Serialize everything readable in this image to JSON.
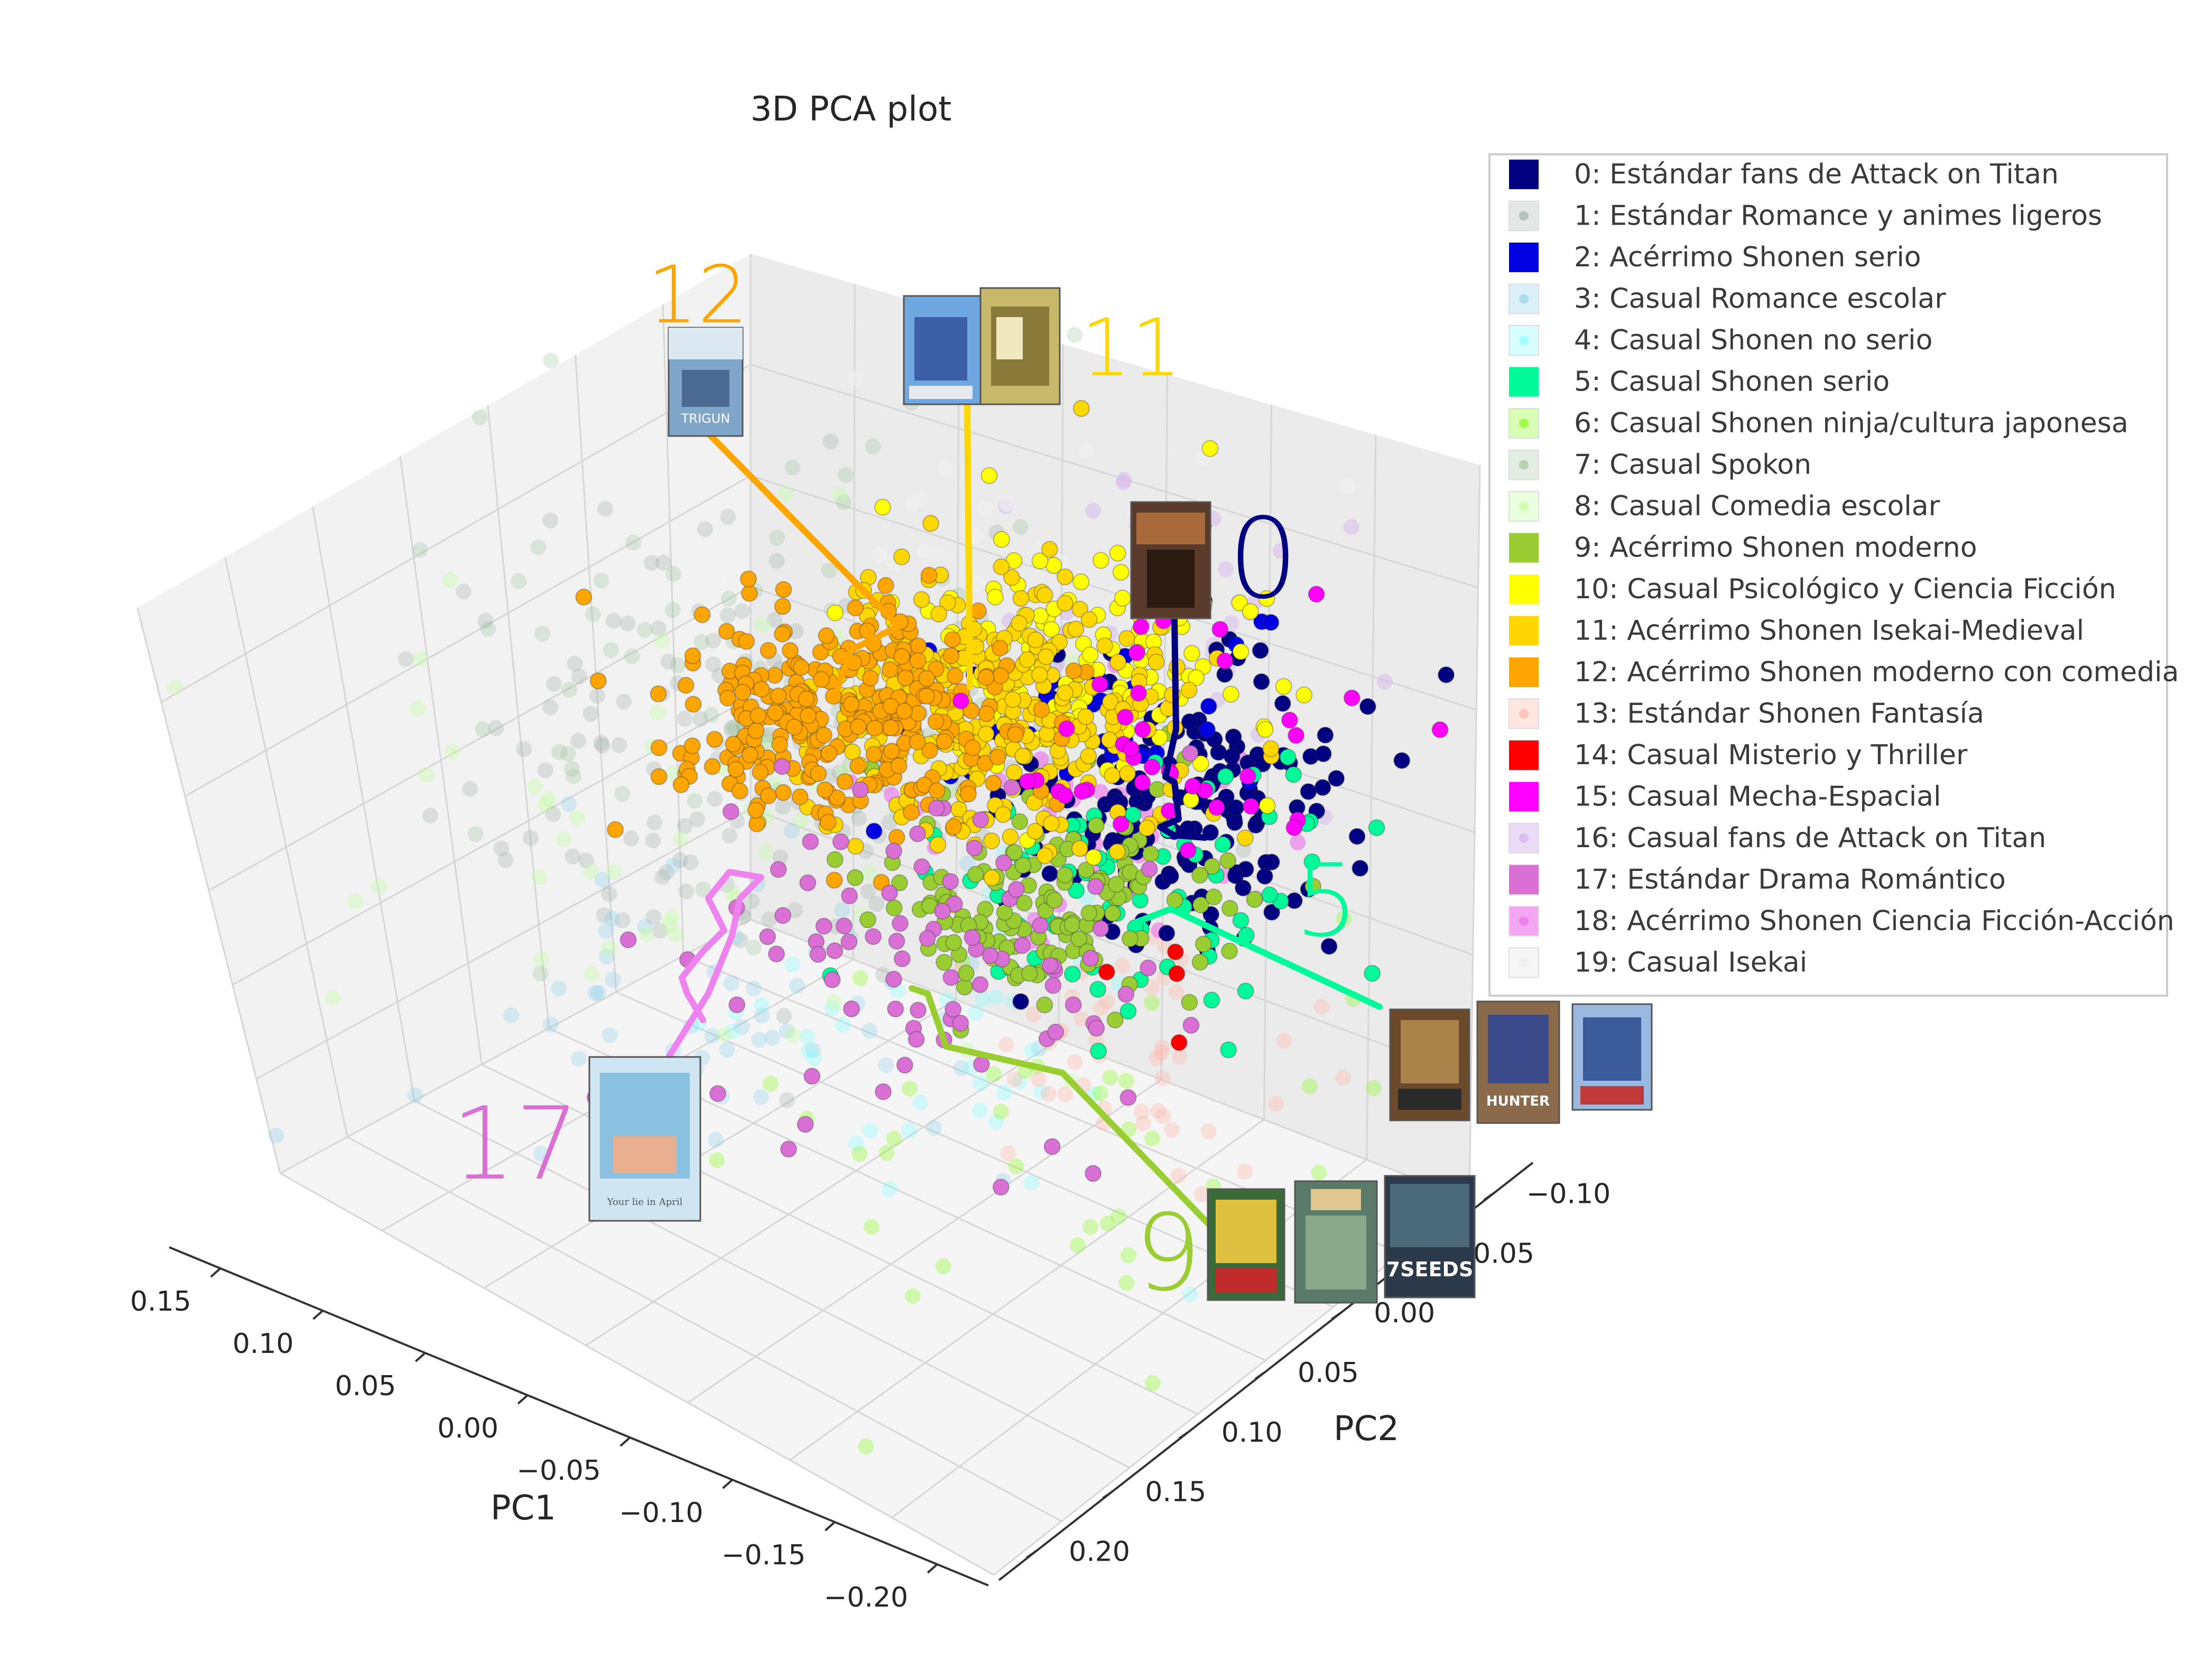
{
  "chart_data": {
    "type": "scatter",
    "title": "3D PCA plot",
    "xlabel": "PC1",
    "ylabel": "PC2",
    "zlabel": "",
    "axes": {
      "pc1_ticks": [
        "0.15",
        "0.10",
        "0.05",
        "0.00",
        "−0.05",
        "−0.10",
        "−0.15",
        "−0.20"
      ],
      "pc2_ticks": [
        "−0.10",
        "−0.05",
        "0.00",
        "0.05",
        "0.10",
        "0.15",
        "0.20"
      ]
    },
    "grid": true,
    "legend_position": "top-right",
    "series": [
      {
        "name": "0: Estándar fans de Attack on Titan",
        "color": "#000080",
        "center": [
          -0.06,
          0.03,
          0.01
        ],
        "spread": 0.035,
        "count": 180,
        "opacity": 1.0
      },
      {
        "name": "1: Estándar Romance y animes ligeros",
        "color": "#8fa59a",
        "center": [
          0.07,
          -0.03,
          0.03
        ],
        "spread": 0.06,
        "count": 140,
        "opacity": 0.25
      },
      {
        "name": "2: Acérrimo Shonen serio",
        "color": "#0000e0",
        "center": [
          -0.05,
          0.0,
          0.04
        ],
        "spread": 0.03,
        "count": 30,
        "opacity": 1.0
      },
      {
        "name": "3: Casual Romance escolar",
        "color": "#87ceeb",
        "center": [
          0.1,
          0.03,
          -0.03
        ],
        "spread": 0.06,
        "count": 60,
        "opacity": 0.3
      },
      {
        "name": "4: Casual Shonen no serio",
        "color": "#7fffff",
        "center": [
          0.04,
          0.06,
          -0.04
        ],
        "spread": 0.05,
        "count": 40,
        "opacity": 0.3
      },
      {
        "name": "5: Casual Shonen serio",
        "color": "#00fa9a",
        "center": [
          -0.03,
          0.05,
          -0.01
        ],
        "spread": 0.04,
        "count": 70,
        "opacity": 1.0
      },
      {
        "name": "6: Casual Shonen ninja/cultura japonesa",
        "color": "#7cfc00",
        "center": [
          0.02,
          0.1,
          -0.08
        ],
        "spread": 0.06,
        "count": 40,
        "opacity": 0.3
      },
      {
        "name": "7: Casual Spokon",
        "color": "#8fbc8f",
        "center": [
          0.08,
          -0.05,
          0.05
        ],
        "spread": 0.06,
        "count": 70,
        "opacity": 0.25
      },
      {
        "name": "8: Casual Comedia escolar",
        "color": "#c1ff9e",
        "center": [
          0.1,
          0.0,
          0.02
        ],
        "spread": 0.07,
        "count": 60,
        "opacity": 0.35
      },
      {
        "name": "9: Acérrimo Shonen moderno",
        "color": "#9acd32",
        "center": [
          0.0,
          0.04,
          -0.01
        ],
        "spread": 0.03,
        "count": 150,
        "opacity": 1.0
      },
      {
        "name": "10: Casual Psicológico y Ciencia Ficción",
        "color": "#ffff00",
        "center": [
          -0.06,
          -0.02,
          0.04
        ],
        "spread": 0.035,
        "count": 120,
        "opacity": 1.0
      },
      {
        "name": "11: Acérrimo Shonen Isekai-Medieval",
        "color": "#ffd700",
        "center": [
          -0.02,
          -0.02,
          0.03
        ],
        "spread": 0.035,
        "count": 320,
        "opacity": 1.0
      },
      {
        "name": "12: Acérrimo Shonen moderno con comedia",
        "color": "#ffa500",
        "center": [
          0.03,
          -0.04,
          0.03
        ],
        "spread": 0.03,
        "count": 300,
        "opacity": 1.0
      },
      {
        "name": "13: Estándar Shonen Fantasía",
        "color": "#ffb6a8",
        "center": [
          -0.01,
          0.08,
          -0.05
        ],
        "spread": 0.04,
        "count": 50,
        "opacity": 0.35
      },
      {
        "name": "14: Casual Misterio y Thriller",
        "color": "#ff0000",
        "center": [
          -0.02,
          0.07,
          -0.04
        ],
        "spread": 0.02,
        "count": 4,
        "opacity": 1.0
      },
      {
        "name": "15: Casual Mecha-Espacial",
        "color": "#ff00ff",
        "center": [
          -0.07,
          0.02,
          0.02
        ],
        "spread": 0.035,
        "count": 40,
        "opacity": 1.0
      },
      {
        "name": "16: Casual fans de Attack on Titan",
        "color": "#d8b8f0",
        "center": [
          -0.08,
          0.0,
          0.05
        ],
        "spread": 0.04,
        "count": 40,
        "opacity": 0.5
      },
      {
        "name": "17: Estándar Drama Romántico",
        "color": "#da70d6",
        "center": [
          0.04,
          0.03,
          -0.03
        ],
        "spread": 0.045,
        "count": 90,
        "opacity": 1.0
      },
      {
        "name": "18: Acérrimo Shonen Ciencia Ficción-Acción",
        "color": "#ee82ee",
        "center": [
          -0.03,
          0.02,
          0.0
        ],
        "spread": 0.03,
        "count": 40,
        "opacity": 0.7
      },
      {
        "name": "19: Casual Isekai",
        "color": "#f0f0f0",
        "center": [
          -0.04,
          -0.04,
          0.06
        ],
        "spread": 0.05,
        "count": 30,
        "opacity": 0.6
      }
    ],
    "annotations": [
      {
        "text": "12",
        "color": "#ffa500",
        "series": "12"
      },
      {
        "text": "11",
        "color": "#ffd700",
        "series": "11"
      },
      {
        "text": "0",
        "color": "#000080",
        "series": "0"
      },
      {
        "text": "5",
        "color": "#00fa9a",
        "series": "5"
      },
      {
        "text": "9",
        "color": "#9acd32",
        "series": "9"
      },
      {
        "text": "17",
        "color": "#da70d6",
        "series": "17"
      }
    ],
    "poster_captions": [
      "TRIGUN",
      "HUNTER",
      "7SEEDS",
      "Your lie in April"
    ]
  }
}
